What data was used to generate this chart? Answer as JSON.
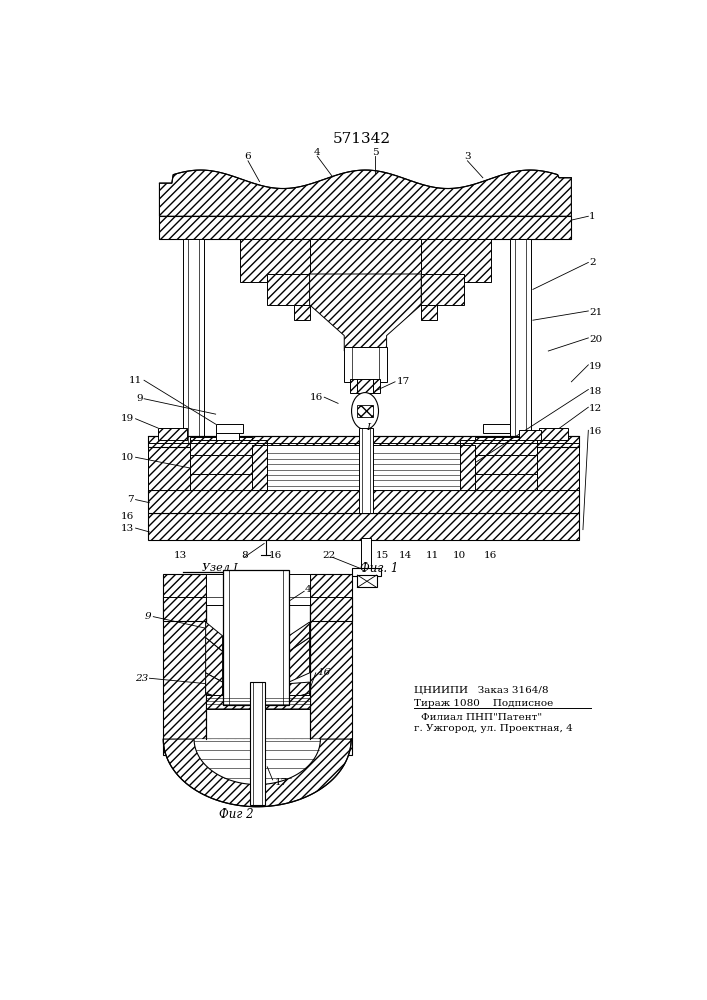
{
  "title": "571342",
  "title_fontsize": 11,
  "fig1_label": "Фиг. 1",
  "fig2_label": "Фиг 2",
  "node_label": "Узел I",
  "bottom_text_line1": "ЦНИИПИ   Заказ 3164/8",
  "bottom_text_line2": "Тираж 1080    Подписное",
  "bottom_text_line3": "Филиал ПНП\"Патент\"",
  "bottom_text_line4": "г. Ужгород, ул. Проектная, 4",
  "bg_color": "#ffffff",
  "line_color": "#000000"
}
